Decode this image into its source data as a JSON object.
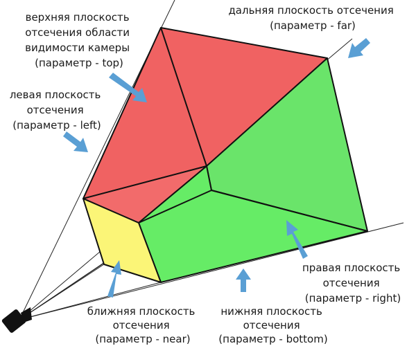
{
  "colors": {
    "top_plane": "#f06262",
    "left_plane": "#f26b6b",
    "right_plane": "#6ae46a",
    "bottom_plane": "#66ec66",
    "near_plane": "#fbf577",
    "edge": "#111111",
    "arrow": "#5a9fd4"
  },
  "labels": {
    "top": {
      "lines": [
        "верхняя плоскость",
        "отсечения области",
        "видимости камеры",
        "(параметр - top)"
      ]
    },
    "far": {
      "lines": [
        "дальняя плоскость отсечения",
        "(параметр - far)"
      ]
    },
    "left": {
      "lines": [
        "левая плоскость",
        "отсечения",
        "(параметр - left)"
      ]
    },
    "right": {
      "lines": [
        "правая плоскость",
        "отсечения",
        "(параметр - right)"
      ]
    },
    "near": {
      "lines": [
        "ближняя плоскость",
        "отсечения",
        "(параметр - near)"
      ]
    },
    "bottom": {
      "lines": [
        "нижняя плоскость",
        "отсечения",
        "(параметр - bottom)"
      ]
    }
  }
}
